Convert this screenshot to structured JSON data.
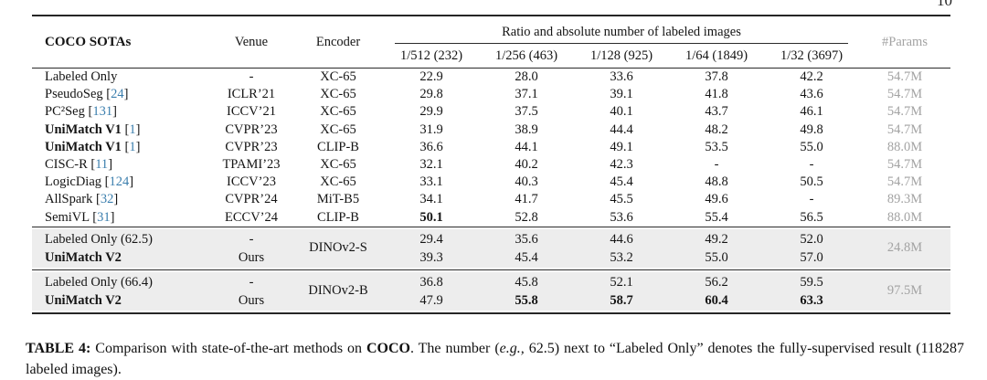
{
  "page_number": "10",
  "colors": {
    "citation_blue": "#3c7fae",
    "params_gray": "#a3a3a3",
    "group_background": "#ededed",
    "rule": "#2b2b2b"
  },
  "header": {
    "title": "COCO SOTAs",
    "venue": "Venue",
    "encoder": "Encoder",
    "ratio_span": "Ratio and absolute number of labeled images",
    "ratio_cols": [
      "1/512 (232)",
      "1/256 (463)",
      "1/128 (925)",
      "1/64 (1849)",
      "1/32 (3697)"
    ],
    "params": "#Params"
  },
  "table": {
    "rows": [
      {
        "method": "Labeled Only",
        "cite": null,
        "venue": "-",
        "encoder": "XC-65",
        "values": [
          "22.9",
          "28.0",
          "33.6",
          "37.8",
          "42.2"
        ],
        "params": "54.7M"
      },
      {
        "method": "PseudoSeg",
        "cite": "24",
        "venue": "ICLR’21",
        "encoder": "XC-65",
        "values": [
          "29.8",
          "37.1",
          "39.1",
          "41.8",
          "43.6"
        ],
        "params": "54.7M"
      },
      {
        "method": "PC²Seg",
        "cite": "131",
        "venue": "ICCV’21",
        "encoder": "XC-65",
        "values": [
          "29.9",
          "37.5",
          "40.1",
          "43.7",
          "46.1"
        ],
        "params": "54.7M"
      },
      {
        "method": "UniMatch V1",
        "cite": "1",
        "venue": "CVPR’23",
        "encoder": "XC-65",
        "values": [
          "31.9",
          "38.9",
          "44.4",
          "48.2",
          "49.8"
        ],
        "params": "54.7M"
      },
      {
        "method": "UniMatch V1",
        "cite": "1",
        "venue": "CVPR’23",
        "encoder": "CLIP-B",
        "values": [
          "36.6",
          "44.1",
          "49.1",
          "53.5",
          "55.0"
        ],
        "params": "88.0M"
      },
      {
        "method": "CISC-R",
        "cite": "11",
        "venue": "TPAMI’23",
        "encoder": "XC-65",
        "values": [
          "32.1",
          "40.2",
          "42.3",
          "-",
          "-"
        ],
        "params": "54.7M"
      },
      {
        "method": "LogicDiag",
        "cite": "124",
        "venue": "ICCV’23",
        "encoder": "XC-65",
        "values": [
          "33.1",
          "40.3",
          "45.4",
          "48.8",
          "50.5"
        ],
        "params": "54.7M"
      },
      {
        "method": "AllSpark",
        "cite": "32",
        "venue": "CVPR’24",
        "encoder": "MiT-B5",
        "values": [
          "34.1",
          "41.7",
          "45.5",
          "49.6",
          "-"
        ],
        "params": "89.3M"
      },
      {
        "method": "SemiVL",
        "cite": "31",
        "venue": "ECCV’24",
        "encoder": "CLIP-B",
        "values": [
          "50.1",
          "52.8",
          "53.6",
          "55.4",
          "56.5"
        ],
        "params": "88.0M"
      }
    ]
  },
  "groups": [
    {
      "encoder": "DINOv2-S",
      "params": "24.8M",
      "rows": [
        {
          "method": "Labeled Only (62.5)",
          "venue": "-",
          "values": [
            "29.4",
            "35.6",
            "44.6",
            "49.2",
            "52.0"
          ]
        },
        {
          "method": "UniMatch V2",
          "venue": "Ours",
          "values": [
            "39.3",
            "45.4",
            "53.2",
            "55.0",
            "57.0"
          ]
        }
      ]
    },
    {
      "encoder": "DINOv2-B",
      "params": "97.5M",
      "rows": [
        {
          "method": "Labeled Only (66.4)",
          "venue": "-",
          "values": [
            "36.8",
            "45.8",
            "52.1",
            "56.2",
            "59.5"
          ]
        },
        {
          "method": "UniMatch V2",
          "venue": "Ours",
          "values": [
            "47.9",
            "55.8",
            "58.7",
            "60.4",
            "63.3"
          ]
        }
      ]
    }
  ],
  "caption": {
    "parts": [
      {
        "t": "TABLE 4:"
      },
      {
        "t": " Comparison with state-of-the-art methods on "
      },
      {
        "t": "COCO"
      },
      {
        "t": ". The number ("
      },
      {
        "t": "e.g.,"
      },
      {
        "t": " 62.5) next to “Labeled Only” denotes the fully-supervised result (118287 labeled images)."
      }
    ]
  }
}
